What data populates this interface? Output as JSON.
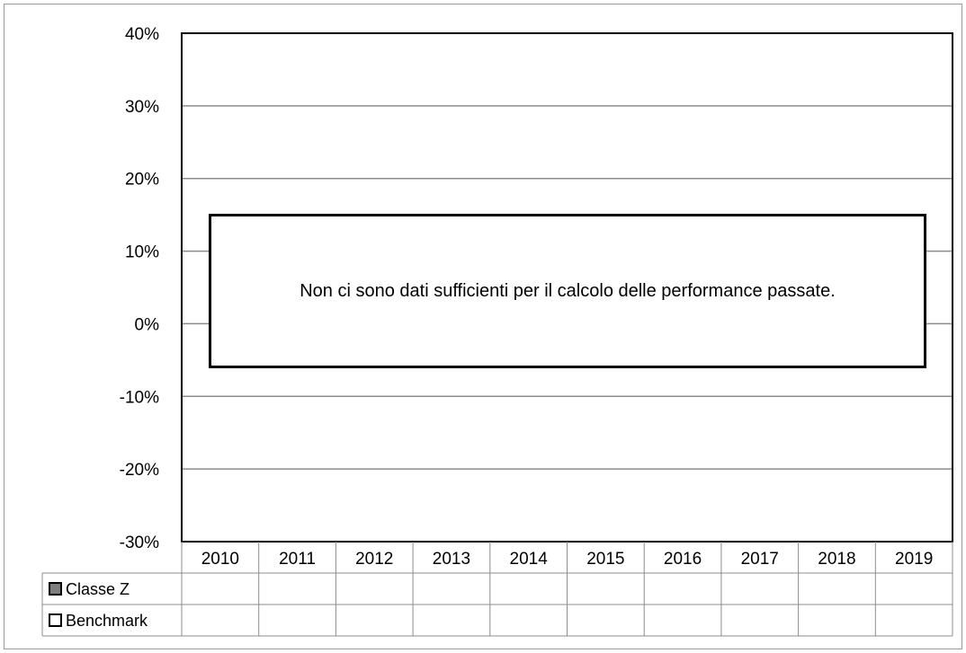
{
  "chart_data": {
    "type": "bar",
    "categories": [
      "2010",
      "2011",
      "2012",
      "2013",
      "2014",
      "2015",
      "2016",
      "2017",
      "2018",
      "2019"
    ],
    "series": [
      {
        "name": "Classe Z",
        "color": "#7f7f7f",
        "values": [
          null,
          null,
          null,
          null,
          null,
          null,
          null,
          null,
          null,
          null
        ]
      },
      {
        "name": "Benchmark",
        "color": "#ffffff",
        "values": [
          null,
          null,
          null,
          null,
          null,
          null,
          null,
          null,
          null,
          null
        ]
      }
    ],
    "ylim": [
      -0.3,
      0.4
    ],
    "yticks": [
      0.4,
      0.3,
      0.2,
      0.1,
      0.0,
      -0.1,
      -0.2,
      -0.3
    ],
    "ytick_labels": [
      "40%",
      "30%",
      "20%",
      "10%",
      "0%",
      "-10%",
      "-20%",
      "-30%"
    ],
    "grid": true,
    "legend": "data-table-below",
    "annotation": "Non ci sono dati sufficienti per il calcolo delle performance passate."
  }
}
